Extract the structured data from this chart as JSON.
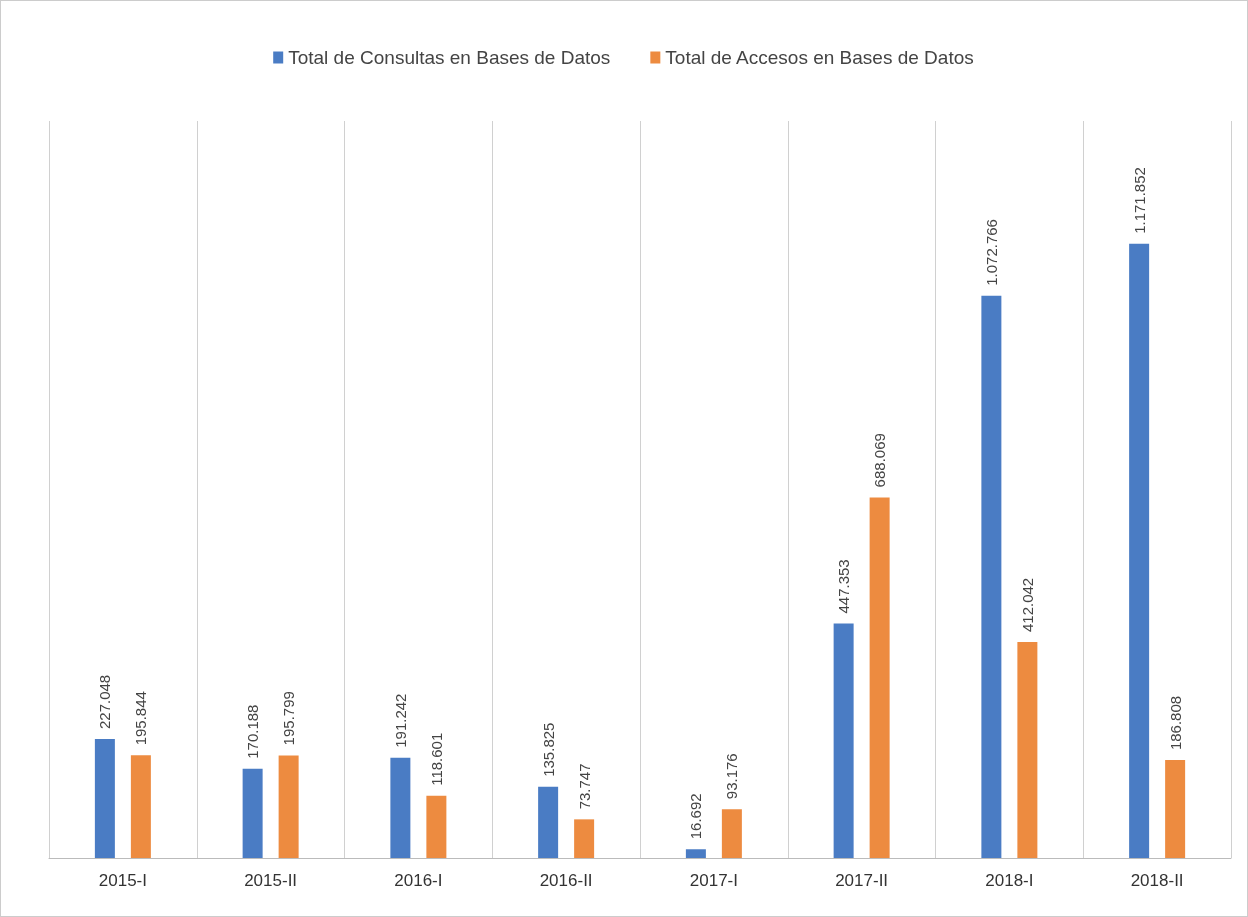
{
  "chart_data": {
    "type": "bar",
    "categories": [
      "2015-I",
      "2015-II",
      "2016-I",
      "2016-II",
      "2017-I",
      "2017-II",
      "2018-I",
      "2018-II"
    ],
    "series": [
      {
        "name": "Total de Consultas en Bases de Datos",
        "color": "#4a7cc4",
        "values": [
          227048,
          170188,
          191242,
          135825,
          16692,
          447353,
          1072766,
          1171852
        ],
        "value_labels": [
          "227.048",
          "170.188",
          "191.242",
          "135.825",
          "16.692",
          "447.353",
          "1.072.766",
          "1.171.852"
        ]
      },
      {
        "name": "Total de Accesos en Bases de Datos",
        "color": "#ed8b40",
        "values": [
          195844,
          195799,
          118601,
          73747,
          93176,
          688069,
          412042,
          186808
        ],
        "value_labels": [
          "195.844",
          "195.799",
          "118.601",
          "73.747",
          "93.176",
          "688.069",
          "412.042",
          "186.808"
        ]
      }
    ],
    "grid": "x",
    "legend": "top"
  }
}
